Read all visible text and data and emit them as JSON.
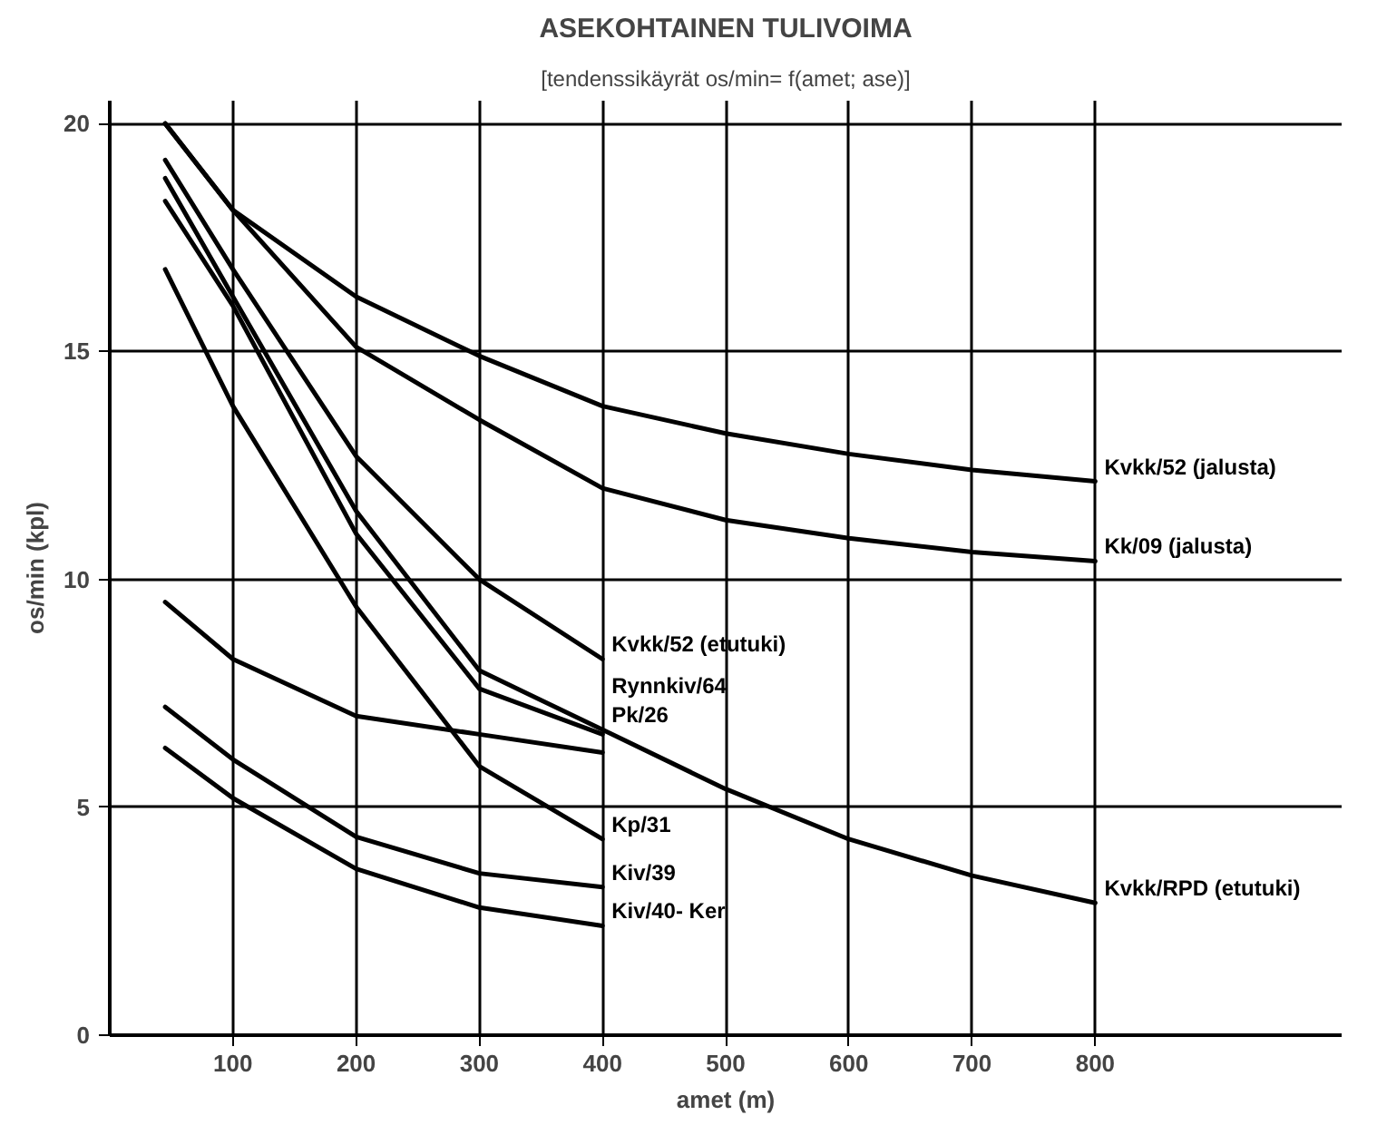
{
  "chart_data": {
    "type": "line",
    "title": "ASEKOHTAINEN TULIVOIMA",
    "subtitle": "[tendenssikäyrät os/min= f(amet; ase)]",
    "xlabel": "amet (m)",
    "ylabel": "os/min (kpl)",
    "xlim": [
      0,
      1000
    ],
    "ylim": [
      0,
      20.5
    ],
    "xticks": [
      100,
      200,
      300,
      400,
      500,
      600,
      700,
      800
    ],
    "yticks": [
      0,
      5,
      10,
      15,
      20
    ],
    "grid": true,
    "marker": "none",
    "line_style": "solid",
    "series": [
      {
        "name": "Kvkk/52 (jalusta)",
        "color": "#000000",
        "x": [
          45,
          100,
          200,
          300,
          400,
          500,
          600,
          700,
          800
        ],
        "values": [
          20,
          18.1,
          16.2,
          14.9,
          13.8,
          13.2,
          12.75,
          12.4,
          12.15
        ]
      },
      {
        "name": "Kk/09 (jalusta)",
        "color": "#000000",
        "x": [
          45,
          100,
          200,
          300,
          400,
          500,
          600,
          700,
          800
        ],
        "values": [
          20,
          18.1,
          15.1,
          13.5,
          12.0,
          11.3,
          10.9,
          10.6,
          10.4
        ]
      },
      {
        "name": "Kvkk/52 (etutuki)",
        "color": "#000000",
        "x": [
          45,
          100,
          200,
          300,
          400
        ],
        "values": [
          19.2,
          16.8,
          12.7,
          10.0,
          8.25
        ]
      },
      {
        "name": "Rynnkiv/64",
        "color": "#000000",
        "x": [
          45,
          100,
          200,
          300,
          400
        ],
        "values": [
          18.3,
          16.0,
          11.0,
          7.6,
          6.6
        ]
      },
      {
        "name": "Pk/26",
        "color": "#000000",
        "x": [
          45,
          100,
          200,
          300,
          400
        ],
        "values": [
          9.5,
          8.25,
          7.0,
          6.6,
          6.2
        ]
      },
      {
        "name": "Kp/31",
        "color": "#000000",
        "x": [
          45,
          100,
          200,
          300,
          400
        ],
        "values": [
          16.8,
          13.8,
          9.4,
          5.9,
          4.3
        ]
      },
      {
        "name": "Kiv/39",
        "color": "#000000",
        "x": [
          45,
          100,
          200,
          300,
          400
        ],
        "values": [
          7.2,
          6.05,
          4.35,
          3.55,
          3.25
        ]
      },
      {
        "name": "Kiv/40- Ker",
        "color": "#000000",
        "x": [
          45,
          100,
          200,
          300,
          400
        ],
        "values": [
          6.3,
          5.2,
          3.65,
          2.8,
          2.4
        ]
      },
      {
        "name": "Kvkk/RPD (etutuki)",
        "color": "#000000",
        "x": [
          45,
          100,
          200,
          300,
          400,
          500,
          600,
          700,
          800
        ],
        "values": [
          18.8,
          16.2,
          11.5,
          8.0,
          6.7,
          5.4,
          4.3,
          3.5,
          2.9
        ]
      }
    ]
  }
}
